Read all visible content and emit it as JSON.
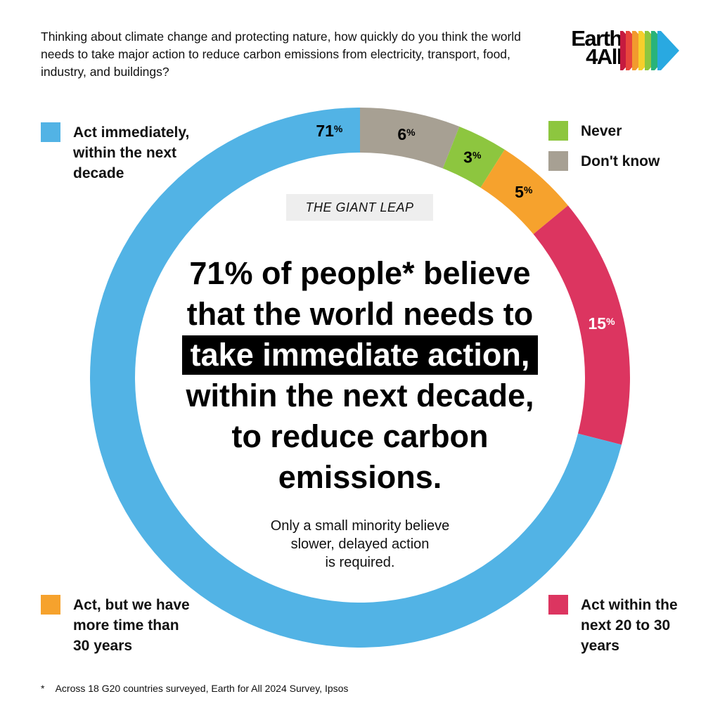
{
  "question": "Thinking about climate change and protecting nature, how quickly do you think the world needs to take major action to reduce carbon emissions from electricity, transport, food, industry, and buildings?",
  "logo": {
    "line1": "Earth",
    "line2": "4All"
  },
  "tag": "THE GIANT LEAP",
  "headline": {
    "line1": "71% of people* believe",
    "line2": "that the world needs to",
    "highlight": "take immediate action,",
    "line4": "within the next decade,",
    "line5": "to reduce carbon",
    "line6": "emissions."
  },
  "subtext": {
    "line1": "Only a small minority believe",
    "line2": "slower, delayed action",
    "line3": "is required."
  },
  "footnote": {
    "star": "*",
    "text": "Across 18 G20 countries surveyed, Earth for All 2024 Survey, Ipsos"
  },
  "legend": {
    "act_immediately": [
      "Act immediately,",
      "within the next",
      "decade"
    ],
    "never": [
      "Never"
    ],
    "dont_know": [
      "Don't know"
    ],
    "more_time": [
      "Act, but we have",
      "more time than",
      "30 years"
    ],
    "within_20_30": [
      "Act within the",
      "next 20 to 30",
      "years"
    ]
  },
  "chart_data": {
    "type": "donut",
    "unit": "%",
    "slices": [
      {
        "label": "Don't know",
        "value": 6,
        "color": "#a7a093",
        "label_color": "#000000"
      },
      {
        "label": "Never",
        "value": 3,
        "color": "#8dc63f",
        "label_color": "#000000"
      },
      {
        "label": "Act, but we have more time than 30 years",
        "value": 5,
        "color": "#f6a22d",
        "label_color": "#000000"
      },
      {
        "label": "Act within the next 20 to 30 years",
        "value": 15,
        "color": "#dc3560",
        "label_color": "#ffffff"
      },
      {
        "label": "Act immediately, within the next decade",
        "value": 71,
        "color": "#52b3e5",
        "label_color": "#000000"
      }
    ]
  }
}
